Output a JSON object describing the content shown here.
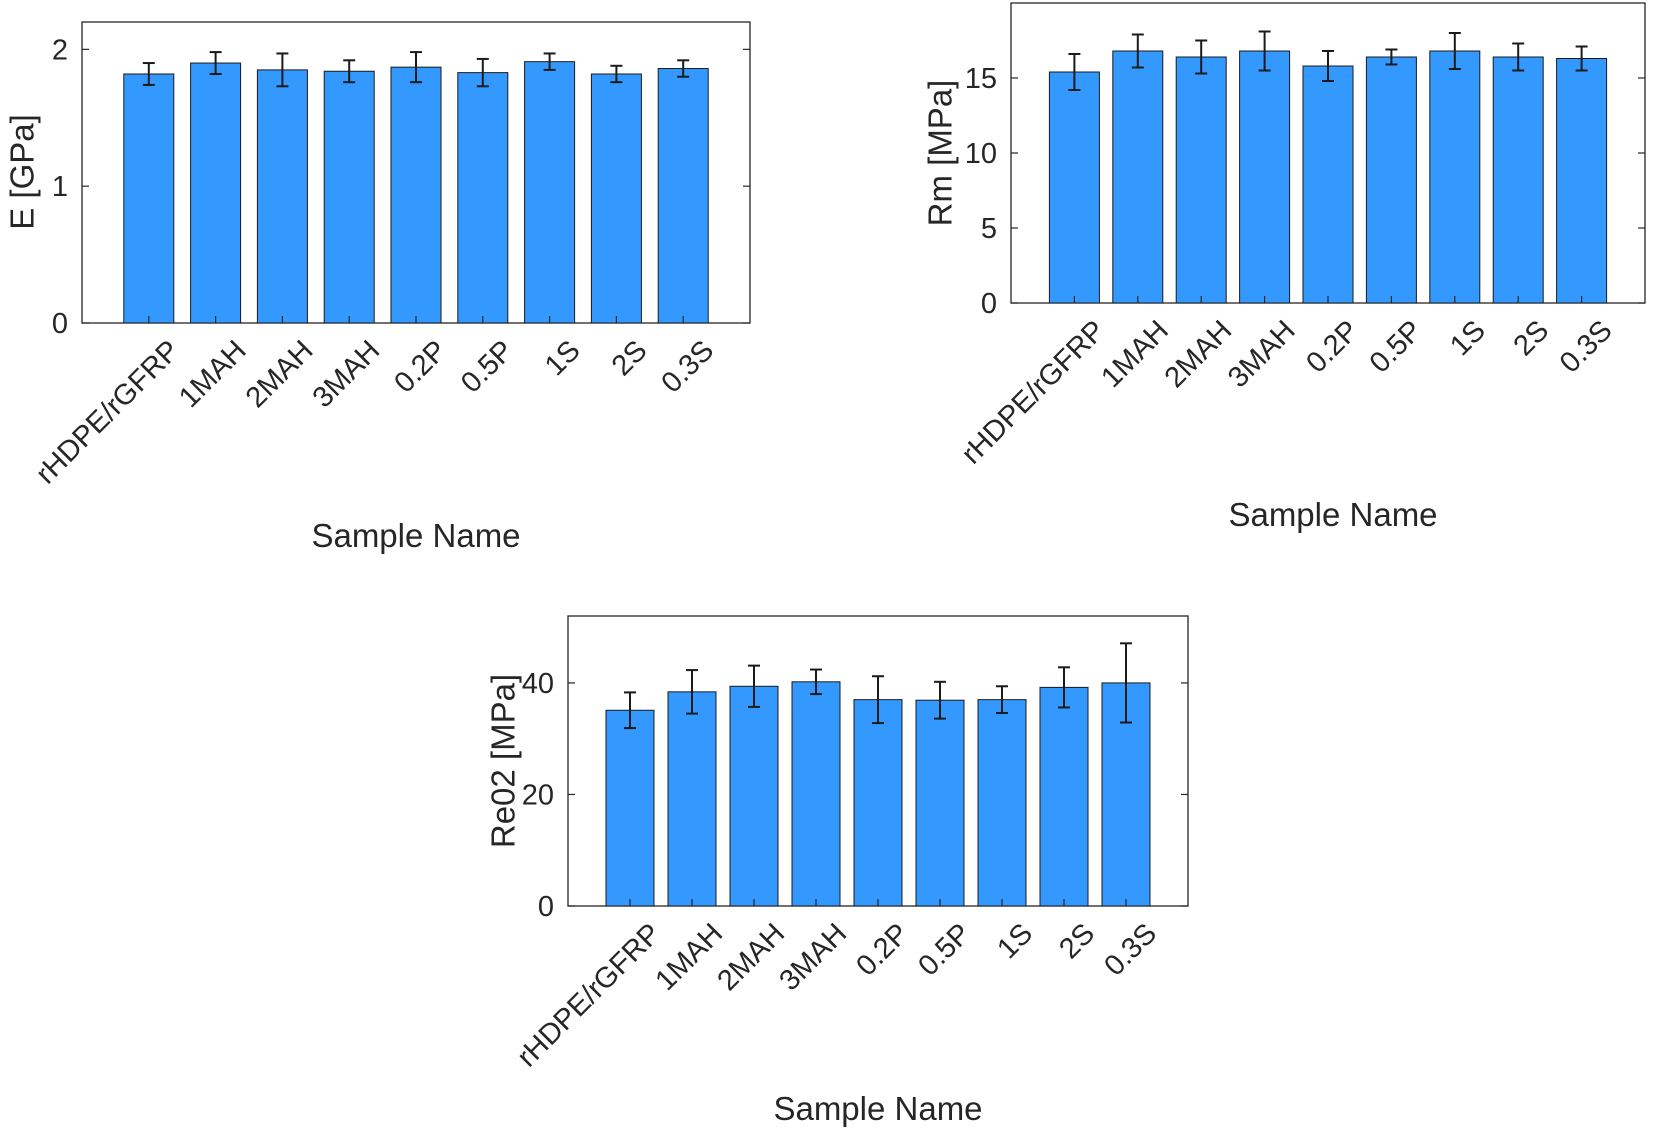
{
  "chart_data": [
    {
      "type": "bar",
      "panel": "E",
      "title": "",
      "xlabel": "Sample Name",
      "ylabel": "E [GPa]",
      "categories": [
        "rHDPE/rGFRP",
        "1MAH",
        "2MAH",
        "3MAH",
        "0.2P",
        "0.5P",
        "1S",
        "2S",
        "0.3S"
      ],
      "values": [
        1.82,
        1.9,
        1.85,
        1.84,
        1.87,
        1.83,
        1.91,
        1.82,
        1.86
      ],
      "errors": [
        0.08,
        0.08,
        0.12,
        0.08,
        0.11,
        0.1,
        0.06,
        0.06,
        0.06
      ],
      "ylim": [
        0,
        2.2
      ],
      "yticks": [
        0,
        1,
        2
      ],
      "ytick_labels": [
        "0",
        "1",
        "2"
      ],
      "bar_color": "#3399ff"
    },
    {
      "type": "bar",
      "panel": "Rm",
      "title": "",
      "xlabel": "Sample Name",
      "ylabel": "Rm [MPa]",
      "categories": [
        "rHDPE/rGFRP",
        "1MAH",
        "2MAH",
        "3MAH",
        "0.2P",
        "0.5P",
        "1S",
        "2S",
        "0.3S"
      ],
      "values": [
        15.4,
        16.8,
        16.4,
        16.8,
        15.8,
        16.4,
        16.8,
        16.4,
        16.3
      ],
      "errors": [
        1.2,
        1.1,
        1.1,
        1.3,
        1.0,
        0.5,
        1.2,
        0.9,
        0.8
      ],
      "ylim": [
        0,
        20
      ],
      "yticks": [
        0,
        5,
        10,
        15
      ],
      "ytick_labels": [
        "0",
        "5",
        "10",
        "15"
      ],
      "bar_color": "#3399ff"
    },
    {
      "type": "bar",
      "panel": "Re02",
      "title": "",
      "xlabel": "Sample Name",
      "ylabel": "Re02 [MPa]",
      "categories": [
        "rHDPE/rGFRP",
        "1MAH",
        "2MAH",
        "3MAH",
        "0.2P",
        "0.5P",
        "1S",
        "2S",
        "0.3S"
      ],
      "values": [
        35.1,
        38.4,
        39.4,
        40.2,
        37.0,
        36.9,
        37.0,
        39.2,
        40.0
      ],
      "errors": [
        3.2,
        3.9,
        3.7,
        2.2,
        4.2,
        3.3,
        2.4,
        3.6,
        7.1
      ],
      "ylim": [
        0,
        52
      ],
      "yticks": [
        0,
        20,
        40
      ],
      "ytick_labels": [
        "0",
        "20",
        "40"
      ],
      "bar_color": "#3399ff"
    }
  ]
}
